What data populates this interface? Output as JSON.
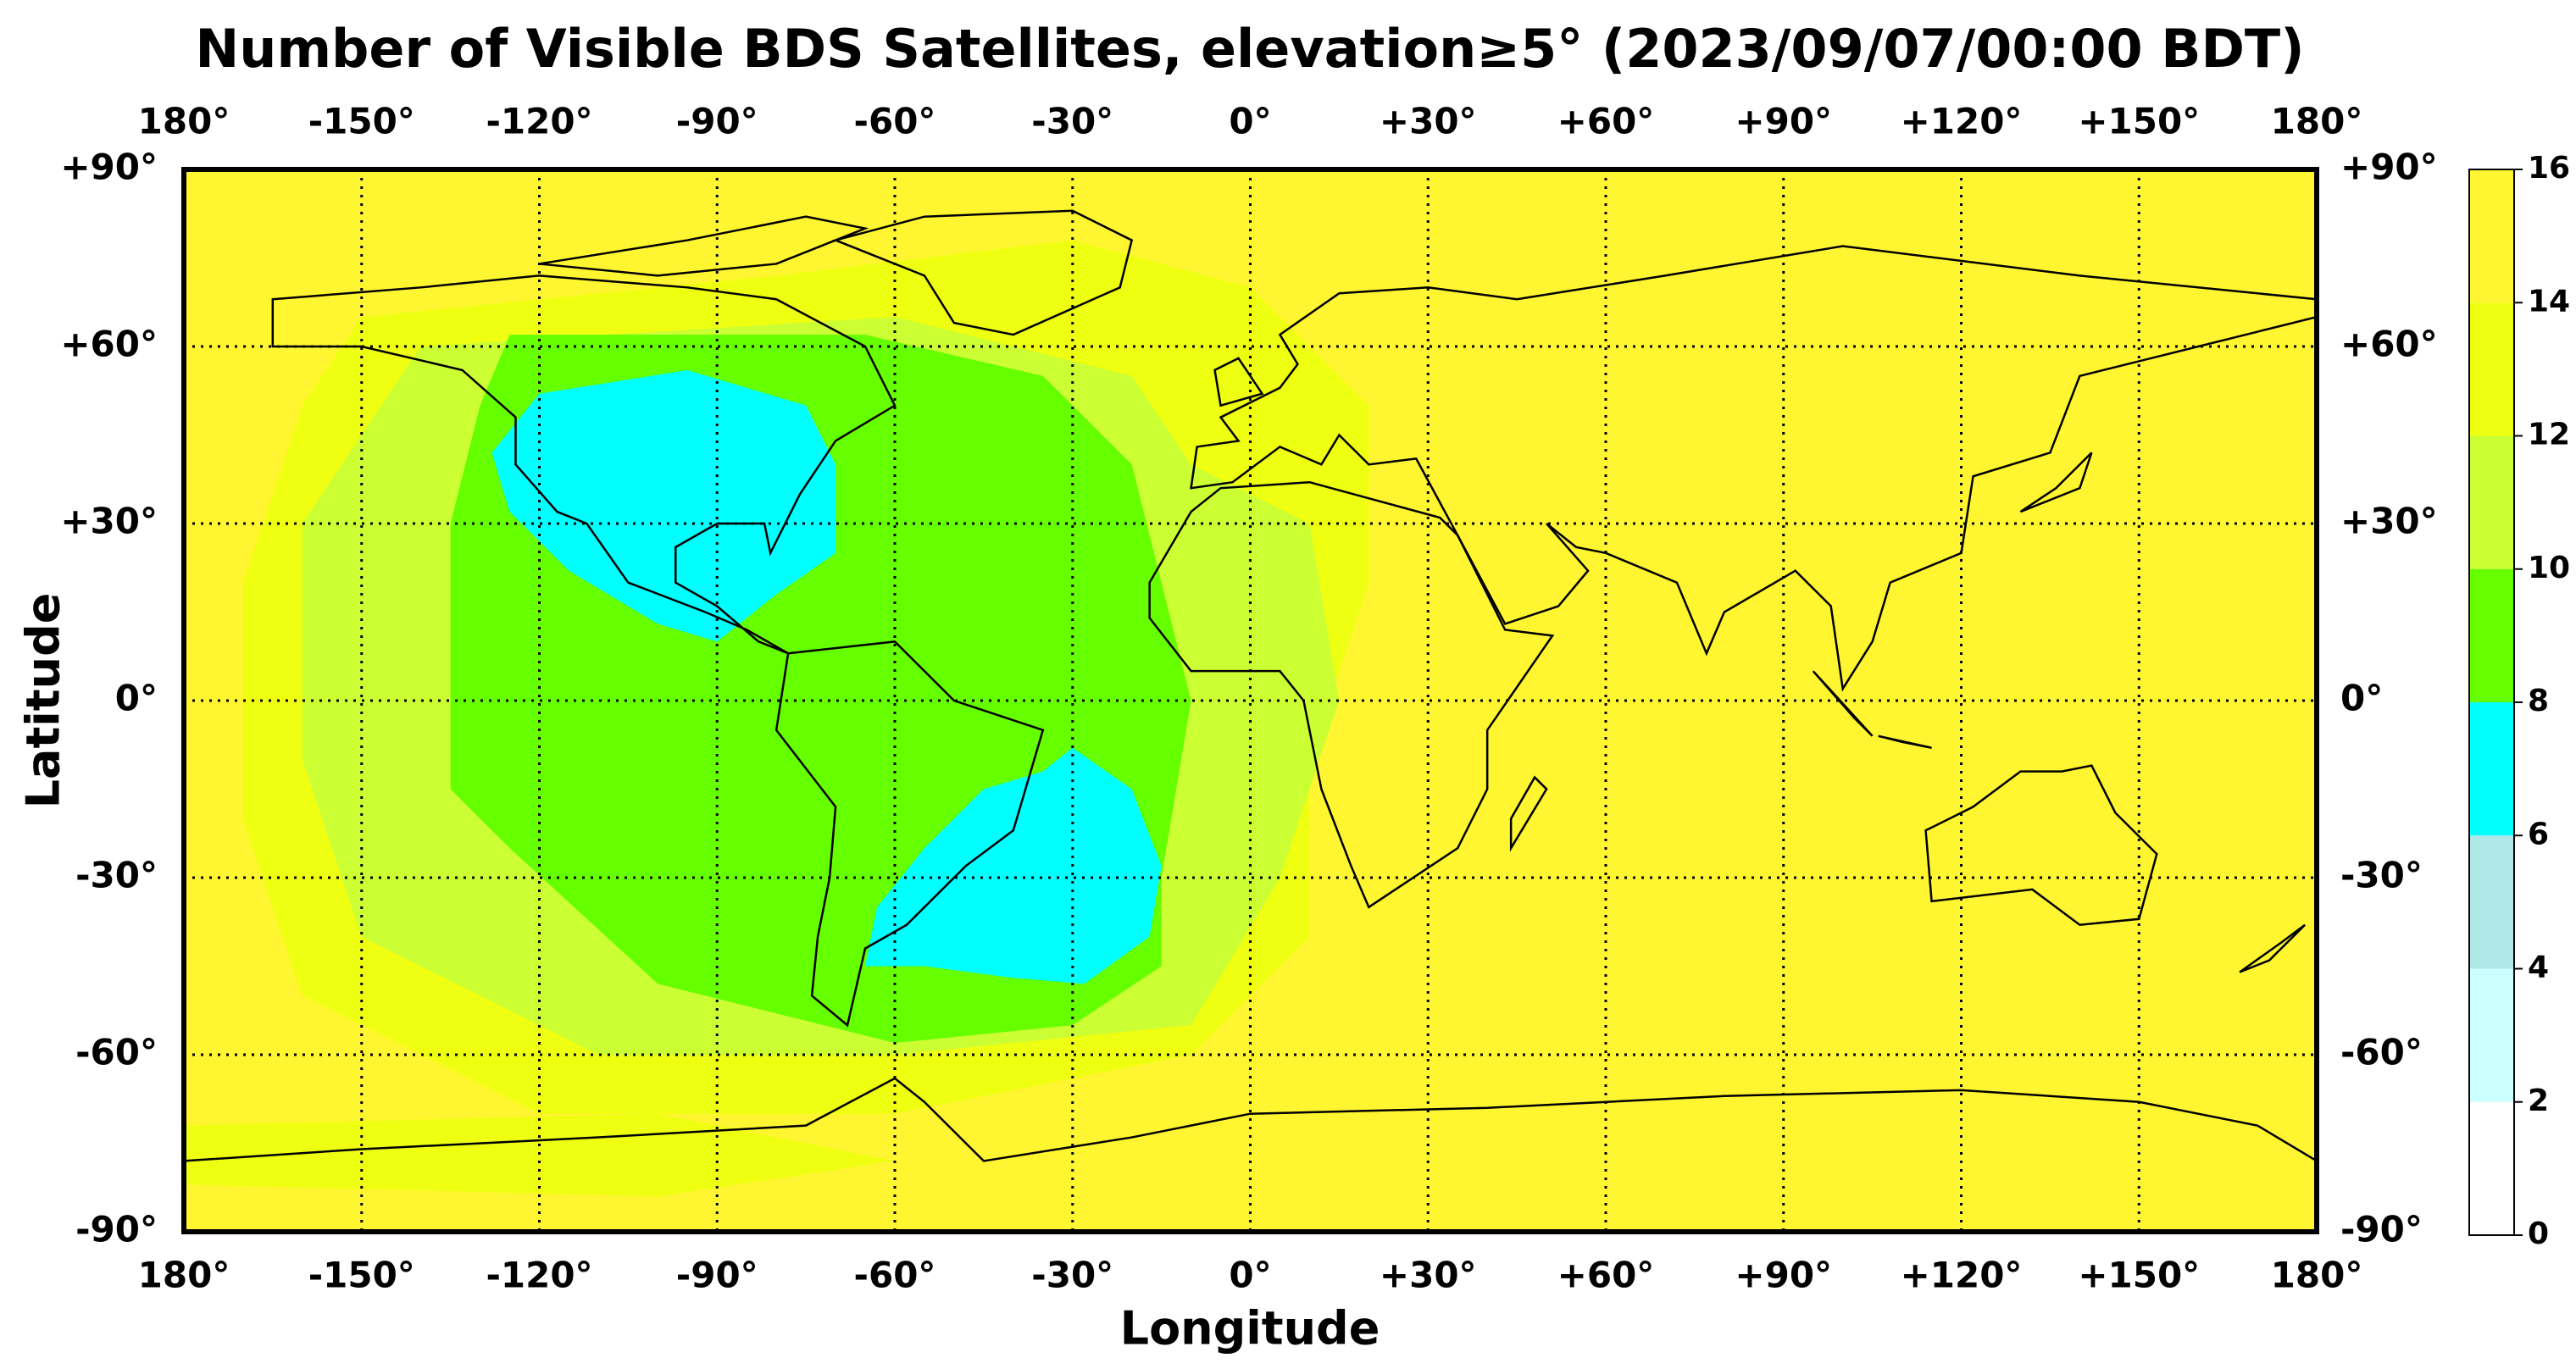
{
  "chart_data": {
    "type": "map",
    "title": "Number of Visible BDS Satellites, elevation≥5° (2023/09/07/00:00 BDT)",
    "xlabel": "Longitude",
    "ylabel": "Latitude",
    "xlim": [
      -180,
      180
    ],
    "ylim": [
      -90,
      90
    ],
    "xticks": [
      {
        "value": -180,
        "label": "180°"
      },
      {
        "value": -150,
        "label": "-150°"
      },
      {
        "value": -120,
        "label": "-120°"
      },
      {
        "value": -90,
        "label": "-90°"
      },
      {
        "value": -60,
        "label": "-60°"
      },
      {
        "value": -30,
        "label": "-30°"
      },
      {
        "value": 0,
        "label": "0°"
      },
      {
        "value": 30,
        "label": "+30°"
      },
      {
        "value": 60,
        "label": "+60°"
      },
      {
        "value": 90,
        "label": "+90°"
      },
      {
        "value": 120,
        "label": "+120°"
      },
      {
        "value": 150,
        "label": "+150°"
      },
      {
        "value": 180,
        "label": "180°"
      }
    ],
    "yticks": [
      {
        "value": -90,
        "label": "-90°"
      },
      {
        "value": -60,
        "label": "-60°"
      },
      {
        "value": -30,
        "label": "-30°"
      },
      {
        "value": 0,
        "label": "0°"
      },
      {
        "value": 30,
        "label": "+30°"
      },
      {
        "value": 60,
        "label": "+60°"
      },
      {
        "value": 90,
        "label": "+90°"
      }
    ],
    "grid": true,
    "background_level": 14,
    "zones": [
      {
        "level": 12,
        "lon": [
          -150,
          -80,
          -30,
          0,
          20,
          20,
          10,
          10,
          -10,
          -60,
          -120,
          -160,
          -170,
          -170,
          -160
        ],
        "lat": [
          65,
          72,
          78,
          70,
          50,
          20,
          -10,
          -40,
          -60,
          -70,
          -70,
          -50,
          -20,
          20,
          50
        ]
      },
      {
        "level": 12,
        "lon": [
          -180,
          -100,
          -60,
          -100,
          -180
        ],
        "lat": [
          -72,
          -70,
          -78,
          -84,
          -82
        ]
      },
      {
        "level": 10,
        "lon": [
          -140,
          -60,
          -20,
          -10,
          10,
          15,
          5,
          -10,
          -60,
          -110,
          -150,
          -160,
          -160
        ],
        "lat": [
          60,
          65,
          55,
          40,
          30,
          0,
          -30,
          -55,
          -60,
          -60,
          -40,
          -10,
          30
        ]
      },
      {
        "level": 8,
        "lon": [
          -125,
          -65,
          -35,
          -20,
          -15,
          -10,
          -15,
          -15,
          -30,
          -60,
          -100,
          -125,
          -135,
          -135,
          -130
        ],
        "lat": [
          62,
          62,
          55,
          40,
          20,
          0,
          -30,
          -45,
          -55,
          -58,
          -48,
          -25,
          -15,
          30,
          50
        ]
      },
      {
        "level": 6,
        "lon": [
          -120,
          -95,
          -75,
          -70,
          -70,
          -80,
          -90,
          -100,
          -115,
          -125,
          -128
        ],
        "lat": [
          52,
          56,
          50,
          40,
          25,
          18,
          10,
          13,
          22,
          32,
          42
        ]
      },
      {
        "level": 6,
        "lon": [
          -30,
          -20,
          -15,
          -17,
          -28,
          -40,
          -55,
          -65,
          -63,
          -55,
          -45,
          -35
        ],
        "lat": [
          -8,
          -15,
          -28,
          -40,
          -48,
          -47,
          -45,
          -45,
          -35,
          -25,
          -15,
          -12
        ]
      }
    ],
    "colorbar": {
      "levels": [
        0,
        2,
        4,
        6,
        8,
        10,
        12,
        14,
        16
      ],
      "colors": [
        "#ffffff",
        "#ccffff",
        "#b0e8e8",
        "#00ffff",
        "#66ff00",
        "#ccff33",
        "#eeff11",
        "#fff530"
      ]
    }
  }
}
